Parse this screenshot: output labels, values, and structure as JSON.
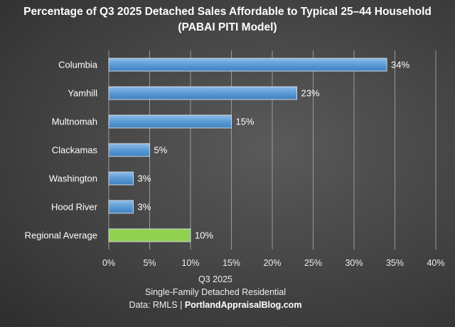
{
  "chart_data": {
    "type": "bar",
    "orientation": "horizontal",
    "title": "Percentage of Q3 2025 Detached Sales Affordable to Typical 25–44 Household",
    "subtitle": "(PABAI PITI Model)",
    "categories": [
      "Columbia",
      "Yamhill",
      "Multnomah",
      "Clackamas",
      "Washington",
      "Hood River",
      "Regional Average"
    ],
    "values": [
      34,
      23,
      15,
      5,
      3,
      3,
      10
    ],
    "data_labels": [
      "34%",
      "23%",
      "15%",
      "5%",
      "3%",
      "3%",
      "10%"
    ],
    "xlim": [
      0,
      40
    ],
    "x_ticks": [
      0,
      5,
      10,
      15,
      20,
      25,
      30,
      35,
      40
    ],
    "x_tick_labels": [
      "0%",
      "5%",
      "10%",
      "15%",
      "20%",
      "25%",
      "30%",
      "35%",
      "40%"
    ],
    "grid": true,
    "colors": {
      "county": "#5b9bd5",
      "average": "#92d050",
      "background": "#474747"
    },
    "xlabel_lines": [
      "Q3 2025",
      "Single-Family Detached Residential"
    ],
    "source_prefix": "Data: RMLS | ",
    "source_site": "PortlandAppraisalBlog.com"
  }
}
